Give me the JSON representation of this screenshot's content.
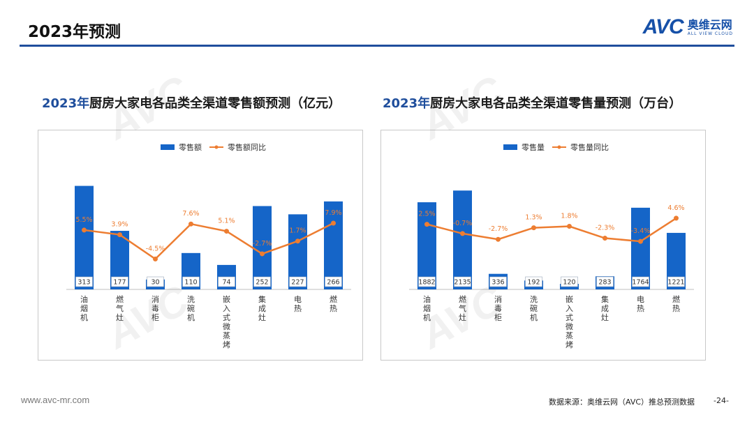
{
  "page": {
    "title": "2023年预测",
    "logo_mark": "AVC",
    "logo_cn": "奥维云网",
    "logo_en": "ALL VIEW CLOUD",
    "footer_url": "www.avc-mr.com",
    "source": "数据来源：奥维云网（AVC）推总预测数据",
    "page_number": "-24-"
  },
  "chart_data": [
    {
      "type": "bar+line",
      "title_year": "2023年",
      "title_rest": "厨房大家电各品类全渠道零售额预测（亿元）",
      "legend": [
        "零售额",
        "零售额同比"
      ],
      "categories": [
        "油烟机",
        "燃气灶",
        "消毒柜",
        "洗碗机",
        "嵌入式微蒸烤",
        "集成灶",
        "电热",
        "燃热"
      ],
      "values": [
        313,
        177,
        30,
        110,
        74,
        252,
        227,
        266
      ],
      "growth": [
        5.5,
        3.9,
        -4.5,
        7.6,
        5.1,
        -2.7,
        1.7,
        7.9
      ],
      "growth_labels": [
        "5.5%",
        "3.9%",
        "-4.5%",
        "7.6%",
        "5.1%",
        "-2.7%",
        "1.7%",
        "7.9%"
      ],
      "ylim": [
        0,
        350
      ],
      "ylim2": [
        -15,
        25
      ]
    },
    {
      "type": "bar+line",
      "title_year": "2023年",
      "title_rest": "厨房大家电各品类全渠道零售量预测（万台）",
      "legend": [
        "零售量",
        "零售量同比"
      ],
      "categories": [
        "油烟机",
        "燃气灶",
        "消毒柜",
        "洗碗机",
        "嵌入式微蒸烤",
        "集成灶",
        "电热",
        "燃热"
      ],
      "values": [
        1882,
        2135,
        336,
        192,
        120,
        283,
        1764,
        1221
      ],
      "growth": [
        2.5,
        -0.7,
        -2.7,
        1.3,
        1.8,
        -2.3,
        -3.4,
        4.6
      ],
      "growth_labels": [
        "2.5%",
        "-0.7%",
        "-2.7%",
        "1.3%",
        "1.8%",
        "-2.3%",
        "-3.4%",
        "4.6%"
      ],
      "ylim": [
        0,
        2500
      ],
      "ylim2": [
        -20,
        20
      ]
    }
  ],
  "colors": {
    "bar": "#1565c8",
    "line": "#ed7d31",
    "brand": "#1f4e9c"
  }
}
